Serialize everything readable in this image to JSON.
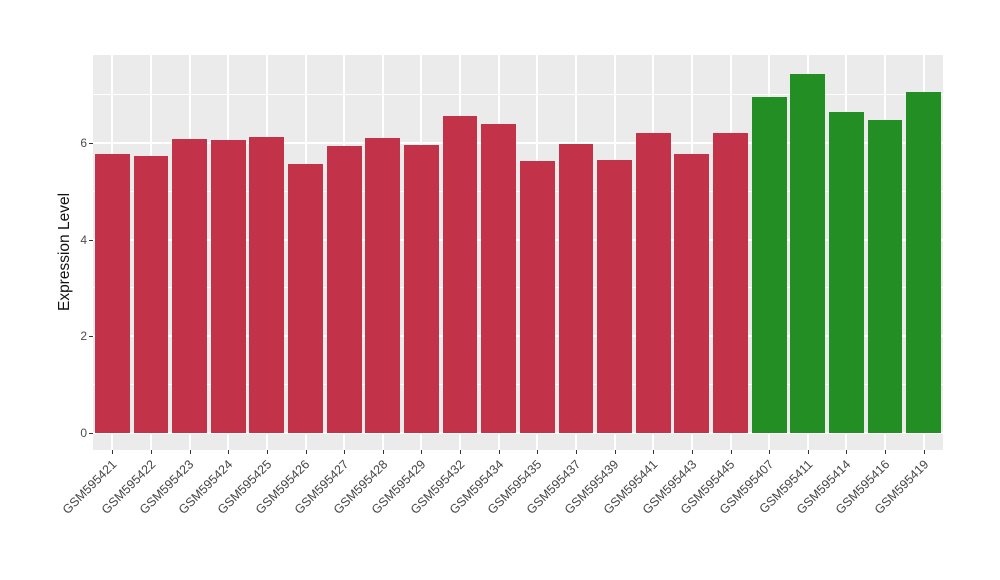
{
  "figure": {
    "background_color": "#FFFFFF",
    "panel_background_color": "#EBEBEB",
    "grid_color": "#FFFFFF",
    "tick_color": "#333333",
    "axis_text_color": "#4D4D4D"
  },
  "chart_data": {
    "type": "bar",
    "title": "",
    "xlabel": "",
    "ylabel": "Expression Level",
    "categories": [
      "GSM595421",
      "GSM595422",
      "GSM595423",
      "GSM595424",
      "GSM595425",
      "GSM595426",
      "GSM595427",
      "GSM595428",
      "GSM595429",
      "GSM595432",
      "GSM595434",
      "GSM595435",
      "GSM595437",
      "GSM595439",
      "GSM595441",
      "GSM595443",
      "GSM595445",
      "GSM595407",
      "GSM595411",
      "GSM595414",
      "GSM595416",
      "GSM595419"
    ],
    "values": [
      5.77,
      5.73,
      6.08,
      6.07,
      6.12,
      5.56,
      5.94,
      6.1,
      5.96,
      6.56,
      6.4,
      5.62,
      5.98,
      5.65,
      6.21,
      5.78,
      6.21,
      6.95,
      7.43,
      6.65,
      6.48,
      7.05
    ],
    "groups": [
      "group1",
      "group1",
      "group1",
      "group1",
      "group1",
      "group1",
      "group1",
      "group1",
      "group1",
      "group1",
      "group1",
      "group1",
      "group1",
      "group1",
      "group1",
      "group1",
      "group1",
      "group2",
      "group2",
      "group2",
      "group2",
      "group2"
    ],
    "group_colors": {
      "group1": "#C23349",
      "group2": "#238E23"
    },
    "ylim": [
      0,
      7.82
    ],
    "yticks_major": [
      0,
      2,
      4,
      6
    ],
    "yticks_minor": [
      1,
      3,
      5,
      7
    ],
    "ytick_labels": [
      "0",
      "2",
      "4",
      "6"
    ],
    "grid": "on",
    "legend": "none",
    "bar_width_fraction": 0.9,
    "x_label_rotation_deg": 45
  }
}
